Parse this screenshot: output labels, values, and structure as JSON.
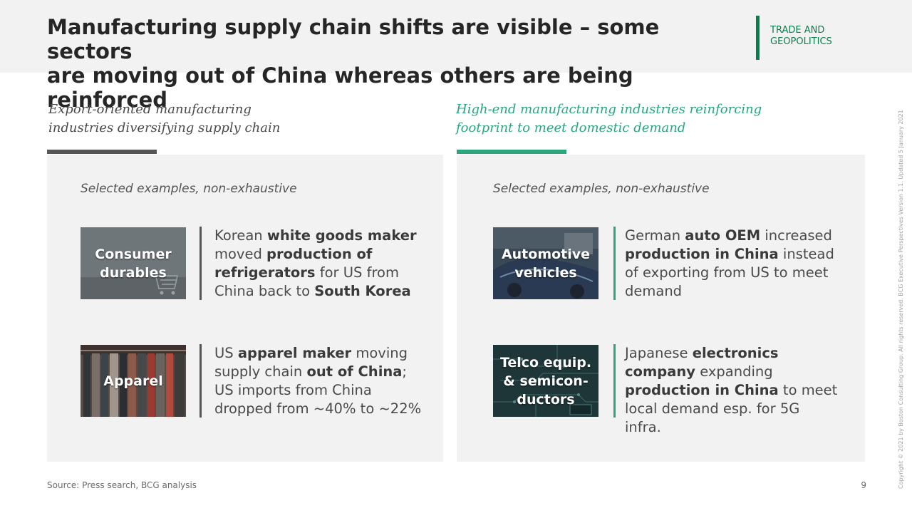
{
  "header": {
    "title": "Manufacturing supply chain shifts are visible – some sectors\nare moving out of China whereas others are being reinforced",
    "tag": "TRADE AND\nGEOPOLITICS"
  },
  "left_column": {
    "heading": "Export-oriented manufacturing\nindustries diversifying supply chain",
    "note": "Selected examples, non-exhaustive",
    "examples": [
      {
        "tile_label": "Consumer\ndurables",
        "description": [
          {
            "text": "Korean ",
            "bold": false
          },
          {
            "text": "white goods maker",
            "bold": true
          },
          {
            "text": " moved ",
            "bold": false
          },
          {
            "text": "production of refrigerators",
            "bold": true
          },
          {
            "text": " for US from China back to ",
            "bold": false
          },
          {
            "text": "South Korea",
            "bold": true
          }
        ]
      },
      {
        "tile_label": "Apparel",
        "description": [
          {
            "text": "US ",
            "bold": false
          },
          {
            "text": "apparel maker",
            "bold": true
          },
          {
            "text": " moving supply chain ",
            "bold": false
          },
          {
            "text": "out of China",
            "bold": true
          },
          {
            "text": "; US imports from China dropped from ~40% to ~22%",
            "bold": false
          }
        ]
      }
    ]
  },
  "right_column": {
    "heading": "High-end manufacturing industries reinforcing\nfootprint to meet domestic demand",
    "note": "Selected examples, non-exhaustive",
    "examples": [
      {
        "tile_label": "Automotive\nvehicles",
        "description": [
          {
            "text": "German ",
            "bold": false
          },
          {
            "text": "auto OEM",
            "bold": true
          },
          {
            "text": " increased ",
            "bold": false
          },
          {
            "text": "production in China",
            "bold": true
          },
          {
            "text": " instead of exporting from US to meet demand",
            "bold": false
          }
        ]
      },
      {
        "tile_label": "Telco equip.\n& semicon-\nductors",
        "description": [
          {
            "text": "Japanese ",
            "bold": false
          },
          {
            "text": "electronics company",
            "bold": true
          },
          {
            "text": " expanding ",
            "bold": false
          },
          {
            "text": "production in China",
            "bold": true
          },
          {
            "text": " to meet local demand esp. for 5G infra.",
            "bold": false
          }
        ]
      }
    ]
  },
  "footer": {
    "source": "Source: Press search, BCG analysis",
    "page_number": "9",
    "copyright": "Copyright © 2021 by Boston Consulting Group. All rights reserved. BCG Executive Perspectives Version 1.1. Updated 5 January 2021"
  },
  "colors": {
    "accent_green": "#2aa57c",
    "tag_green": "#0a7d4c",
    "accent_grey": "#555555",
    "panel_bg": "#f2f2f2"
  },
  "icons": {
    "consumer_tile": "shopping-cart-photo",
    "apparel_tile": "clothing-rack-photo",
    "auto_tile": "car-photo",
    "telco_tile": "circuit-board-photo"
  }
}
